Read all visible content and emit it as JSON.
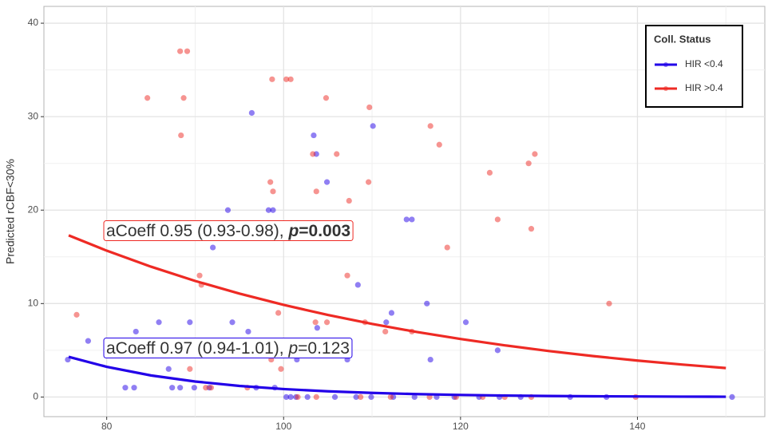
{
  "chart_data": {
    "type": "scatter",
    "y_label": "Predicted rCBF<30%",
    "xlim": [
      72.9,
      154.4
    ],
    "ylim": [
      -2.1,
      41.8
    ],
    "xticks": [
      80,
      100,
      120,
      140
    ],
    "yticks": [
      0,
      10,
      20,
      30,
      40
    ],
    "grid": true,
    "legend": {
      "title": "Coll. Status",
      "position": "top-right"
    },
    "series": [
      {
        "name": "HIR <0.4",
        "color": "#2200e8",
        "x": [
          75.6,
          77.9,
          82.1,
          83.1,
          83.3,
          85.9,
          89.4,
          87.0,
          87.4,
          88.3,
          89.9,
          91.6,
          92.0,
          93.7,
          94.2,
          96.4,
          96.0,
          98.3,
          98.8,
          96.9,
          99.0,
          100.3,
          100.8,
          101.4,
          102.7,
          105.8,
          108.2,
          109.9,
          112.4,
          114.8,
          117.3,
          119.3,
          122.1,
          124.4,
          126.8,
          132.4,
          136.5,
          150.7,
          103.4,
          103.7,
          104.9,
          103.8,
          101.5,
          107.2,
          108.4,
          110.1,
          111.6,
          112.2,
          113.9,
          114.5,
          116.2,
          116.6,
          120.6,
          124.2
        ],
        "values": [
          4,
          6,
          1,
          1,
          7,
          8,
          8,
          3,
          1,
          1,
          1,
          1,
          16,
          20,
          8,
          30.4,
          7,
          20,
          20,
          1,
          1,
          0,
          0,
          0,
          0,
          0,
          0,
          0,
          0,
          0,
          0,
          0,
          0,
          0,
          0,
          0,
          0,
          0,
          28,
          26,
          23,
          7.4,
          4,
          4,
          12,
          29,
          8,
          9,
          19,
          19,
          10,
          4,
          8,
          5
        ],
        "fit": {
          "x": [
            75.7,
            80,
            85,
            90,
            95,
            100,
            105,
            110,
            115,
            120,
            125,
            130,
            135,
            140,
            145,
            150
          ],
          "values": [
            4.3,
            3.23,
            2.31,
            1.66,
            1.19,
            0.85,
            0.61,
            0.44,
            0.31,
            0.22,
            0.16,
            0.11,
            0.08,
            0.06,
            0.04,
            0.03
          ]
        }
      },
      {
        "name": "HIR >0.4",
        "color": "#ee2a24",
        "x": [
          76.6,
          84.6,
          88.3,
          89.1,
          88.7,
          88.4,
          98.7,
          100.3,
          100.8,
          104.8,
          109.7,
          116.6,
          117.6,
          103.3,
          106,
          128.4,
          127.7,
          123.3,
          98.5,
          109.6,
          98.8,
          103.7,
          107.4,
          124.2,
          128,
          118.5,
          90.5,
          90.7,
          107.2,
          136.8,
          99.4,
          103.6,
          104.9,
          109.2,
          111.5,
          114.5,
          89.4,
          99.7,
          98.6,
          91.2,
          91.8,
          95.9,
          101.6,
          103.7,
          108.7,
          112.1,
          116.5,
          119.5,
          122.5,
          125,
          128,
          139.8
        ],
        "values": [
          8.8,
          32,
          37,
          37,
          32,
          28,
          34,
          34,
          34,
          32,
          31,
          29,
          27,
          26,
          26,
          26,
          25,
          24,
          23,
          23,
          22,
          22,
          21,
          19,
          18,
          16,
          13,
          12,
          13,
          10,
          9,
          8,
          8,
          8,
          7,
          7,
          3,
          3,
          4,
          1,
          1,
          1,
          0,
          0,
          0,
          0,
          0,
          0,
          0,
          0,
          0,
          0
        ],
        "fit": {
          "x": [
            75.7,
            80,
            85,
            90,
            95,
            100,
            105,
            110,
            115,
            120,
            125,
            130,
            135,
            140,
            145,
            150
          ],
          "values": [
            17.3,
            15.66,
            13.95,
            12.42,
            11.07,
            9.86,
            8.78,
            7.82,
            6.97,
            6.21,
            5.53,
            4.92,
            4.38,
            3.9,
            3.48,
            3.1
          ]
        }
      }
    ],
    "annotations": [
      {
        "text": "aCoeff 0.95 (0.93-0.98), ",
        "p": "p",
        "p_value": "=0.003",
        "bold": true,
        "color": "#ee2a24"
      },
      {
        "text": "aCoeff 0.97 (0.94-1.01), ",
        "p": "p",
        "p_value": "=0.123",
        "bold": false,
        "color": "#2200e8"
      }
    ]
  }
}
